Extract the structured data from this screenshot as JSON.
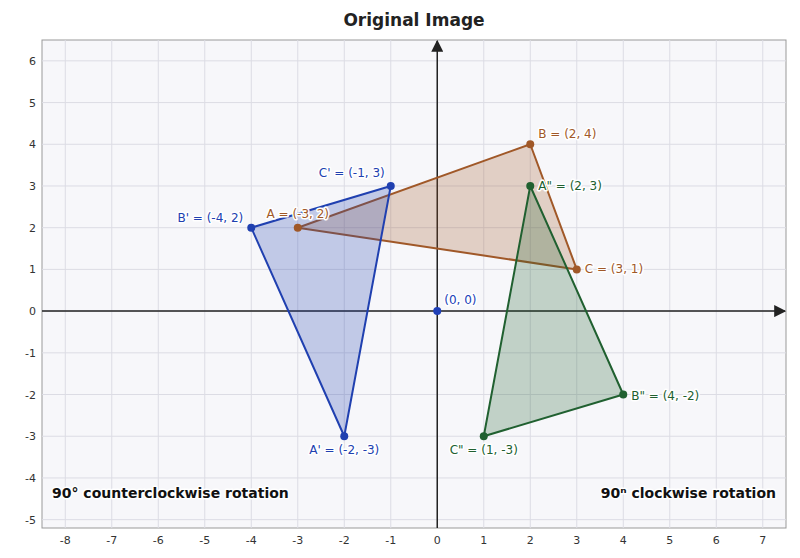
{
  "chart_data": {
    "type": "polygon",
    "title": "Original Image",
    "xlim": [
      -8.5,
      7.5
    ],
    "ylim": [
      -5.2,
      6.5
    ],
    "xticks": [
      -8,
      -7,
      -6,
      -5,
      -4,
      -3,
      -2,
      -1,
      0,
      1,
      2,
      3,
      4,
      5,
      6,
      7
    ],
    "yticks": [
      -5,
      -4,
      -3,
      -2,
      -1,
      0,
      1,
      2,
      3,
      4,
      5,
      6
    ],
    "grid": true,
    "series": [
      {
        "type": "polygon",
        "color": "#a05828",
        "x": [
          -3,
          2,
          3
        ],
        "y": [
          2,
          4,
          1
        ],
        "labels": [
          "A = (-3, 2)",
          "B = (2, 4)",
          "C = (3, 1)"
        ]
      },
      {
        "type": "polygon",
        "color": "#2040b0",
        "x": [
          -2,
          -4,
          -1
        ],
        "y": [
          -3,
          2,
          3
        ],
        "labels": [
          "A' = (-2, -3)",
          "B' = (-4, 2)",
          "C' = (-1, 3)"
        ]
      },
      {
        "type": "polygon",
        "color": "#206030",
        "x": [
          2,
          4,
          1
        ],
        "y": [
          3,
          -2,
          -3
        ],
        "labels": [
          "A\" = (2, 3)",
          "B\" = (4, -2)",
          "C\" = (1, -3)"
        ]
      },
      {
        "type": "scatter",
        "color": "#2040b8",
        "x": [
          0
        ],
        "y": [
          0
        ],
        "labels": [
          "(0, 0)"
        ]
      }
    ],
    "annotations": [
      "90° counterclockwise rotation",
      "90ⁿ clockwise rotation"
    ]
  }
}
